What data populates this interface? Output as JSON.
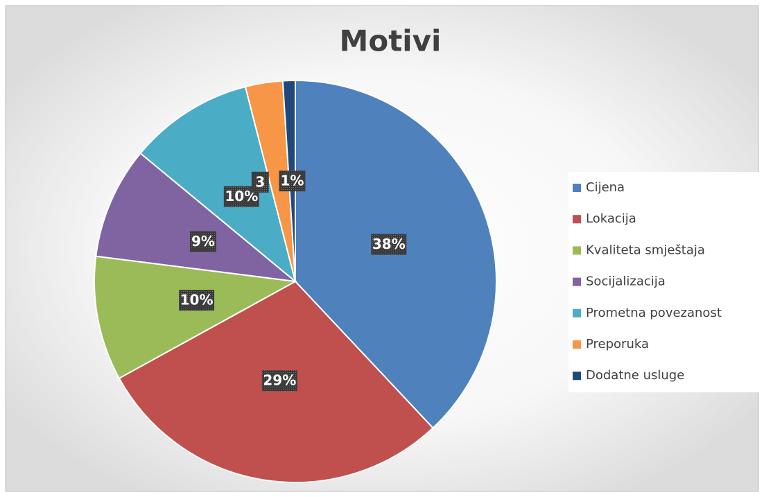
{
  "chart_data": {
    "type": "pie",
    "title": "Motivi",
    "categories": [
      "Cijena",
      "Lokacija",
      "Kvaliteta smještaja",
      "Socijalizacija",
      "Prometna povezanost",
      "Preporuka",
      "Dodatne usluge"
    ],
    "values": [
      38,
      29,
      10,
      9,
      10,
      3,
      1
    ],
    "value_labels": [
      "38%",
      "29%",
      "10%",
      "9%",
      "10%",
      "3",
      "1%"
    ],
    "colors": [
      "#4f81bd",
      "#c0504d",
      "#9bbb59",
      "#8064a2",
      "#4bacc6",
      "#f79646",
      "#1f497d"
    ],
    "legend": "right"
  }
}
